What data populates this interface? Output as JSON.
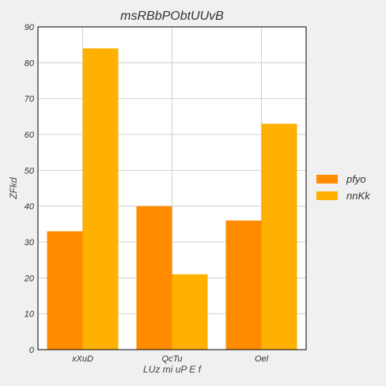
{
  "chart_data": {
    "type": "bar",
    "title": "msRBbPObtUUvB",
    "xlabel": "LUz mi uP E f",
    "ylabel": "ZFkd",
    "categories": [
      "xXuD",
      "QcTu",
      "Oel"
    ],
    "series": [
      {
        "name": "pfyo",
        "values": [
          33,
          40,
          36
        ],
        "color": "#ff8c00"
      },
      {
        "name": "nnKk",
        "values": [
          84,
          21,
          63
        ],
        "color": "#ffb000"
      }
    ],
    "ylim": [
      0,
      90
    ],
    "yticks": [
      0,
      10,
      20,
      30,
      40,
      50,
      60,
      70,
      80,
      90
    ],
    "grid": true,
    "legend_position": "right",
    "colors": {
      "background": "#f0f0f0",
      "plot_background": "#ffffff",
      "grid": "#d0d0d0"
    }
  }
}
